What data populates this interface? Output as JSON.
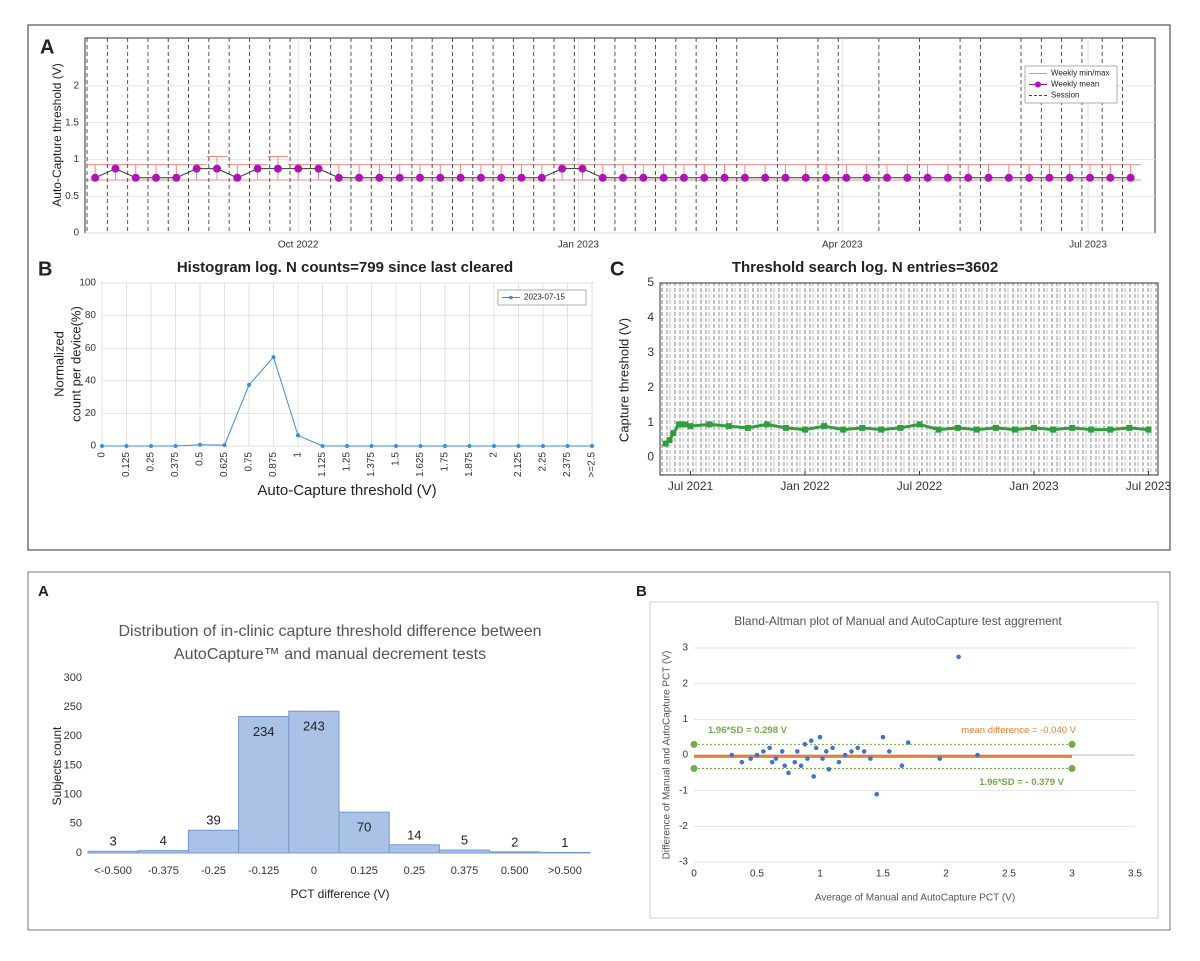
{
  "chart_data": [
    {
      "type": "line",
      "panel_label": "A",
      "ylabel": "Auto-Capture threshold (V)",
      "x": [
        0,
        1,
        2,
        3,
        4,
        5,
        6,
        7,
        8,
        9,
        10,
        11,
        12,
        13,
        14,
        15,
        16,
        17,
        18,
        19,
        20,
        21,
        22,
        23,
        24,
        25,
        26,
        27,
        28,
        29,
        30,
        31,
        32,
        33,
        34,
        35,
        36,
        37,
        38,
        39,
        40,
        41,
        42,
        43,
        44,
        45,
        46,
        47,
        48,
        49,
        50,
        51
      ],
      "series": [
        {
          "name": "Weekly min/max",
          "color": "#f08a8a",
          "low": [
            0.72,
            0.72,
            0.72,
            0.72,
            0.72,
            0.72,
            0.72,
            0.72,
            0.72,
            0.72,
            0.72,
            0.72,
            0.72,
            0.72,
            0.72,
            0.72,
            0.72,
            0.72,
            0.72,
            0.72,
            0.72,
            0.72,
            0.72,
            0.72,
            0.72,
            0.72,
            0.72,
            0.72,
            0.72,
            0.72,
            0.72,
            0.72,
            0.72,
            0.72,
            0.72,
            0.72,
            0.72,
            0.72,
            0.72,
            0.72,
            0.72,
            0.72,
            0.72,
            0.72,
            0.72,
            0.72,
            0.72,
            0.72,
            0.72,
            0.72,
            0.72,
            0.72
          ],
          "high": [
            0.93,
            0.93,
            0.93,
            0.93,
            0.93,
            0.93,
            1.04,
            0.93,
            0.93,
            1.04,
            0.93,
            0.93,
            0.93,
            0.93,
            0.93,
            0.93,
            0.93,
            0.93,
            0.93,
            0.93,
            0.93,
            0.93,
            0.93,
            0.93,
            0.93,
            0.93,
            0.93,
            0.93,
            0.93,
            0.93,
            0.93,
            0.93,
            0.93,
            0.93,
            0.93,
            0.93,
            0.93,
            0.93,
            0.93,
            0.93,
            0.93,
            0.93,
            0.93,
            0.93,
            0.93,
            0.93,
            0.93,
            0.93,
            0.93,
            0.93,
            0.93,
            0.93
          ]
        },
        {
          "name": "Weekly mean",
          "color": "#b012b8",
          "values": [
            0.75,
            0.875,
            0.75,
            0.75,
            0.75,
            0.875,
            0.875,
            0.75,
            0.875,
            0.875,
            0.875,
            0.875,
            0.75,
            0.75,
            0.75,
            0.75,
            0.75,
            0.75,
            0.75,
            0.75,
            0.75,
            0.75,
            0.75,
            0.875,
            0.875,
            0.75,
            0.75,
            0.75,
            0.75,
            0.75,
            0.75,
            0.75,
            0.75,
            0.75,
            0.75,
            0.75,
            0.75,
            0.75,
            0.75,
            0.75,
            0.75,
            0.75,
            0.75,
            0.75,
            0.75,
            0.75,
            0.75,
            0.75,
            0.75,
            0.75,
            0.75,
            0.75
          ]
        },
        {
          "name": "Session",
          "color": "#444",
          "x": [
            -0.4,
            0.6,
            1.6,
            2.6,
            3.6,
            4.6,
            5.6,
            6.6,
            7.6,
            8.6,
            9.6,
            10.6,
            11.6,
            12.6,
            13.6,
            14.6,
            15.6,
            16.6,
            17.6,
            18.6,
            19.6,
            20.6,
            21.6,
            22.6,
            23.6,
            24.6,
            25.6,
            26.6,
            27.6,
            28.6,
            29.6,
            30.6,
            31.6,
            33.6,
            35.6,
            36.6,
            38.6,
            40.6,
            42.6,
            43.6,
            45.6,
            46.6,
            47.6,
            48.6,
            49.6,
            50.6
          ]
        }
      ],
      "xlim": [
        -0.5,
        52.2
      ],
      "ylim": [
        0,
        2.65
      ],
      "xticks": [
        {
          "value": 10,
          "label": "Oct 2022"
        },
        {
          "value": 23.8,
          "label": "Jan 2023"
        },
        {
          "value": 36.8,
          "label": "Apr 2023"
        },
        {
          "value": 48.9,
          "label": "Jul 2023"
        }
      ],
      "yticks": [
        0,
        0.5,
        1,
        1.5,
        2
      ],
      "grid": true,
      "legend": "upper right"
    },
    {
      "type": "line",
      "panel_label": "B",
      "title": "Histogram log. N counts=799  since last cleared",
      "ylabel": [
        "Normalized",
        "count per device(%)"
      ],
      "xlabel": "Auto-Capture threshold (V)",
      "categories": [
        "0",
        "0.125",
        "0.25",
        "0.375",
        "0.5",
        "0.625",
        "0.75",
        "0.875",
        "1",
        "1.125",
        "1.25",
        "1.375",
        "1.5",
        "1.625",
        "1.75",
        "1.875",
        "2",
        "2.125",
        "2.25",
        "2.375",
        ">=2.5"
      ],
      "series": [
        {
          "name": "2023-07-15",
          "color": "#3b8ed8",
          "values": [
            0,
            0,
            0,
            0,
            0.8,
            0.5,
            37.5,
            54.5,
            6.5,
            0,
            0,
            0,
            0,
            0,
            0,
            0,
            0,
            0,
            0,
            0,
            0
          ]
        }
      ],
      "ylim": [
        0,
        100
      ],
      "yticks": [
        0,
        20,
        40,
        60,
        80,
        100
      ],
      "grid": true,
      "legend": "upper right"
    },
    {
      "type": "line",
      "panel_label": "C",
      "title": "Threshold search log. N entries=3602",
      "ylabel": "Capture threshold (V)",
      "x": [
        -1.3,
        -1.1,
        -0.9,
        -0.6,
        -0.3,
        0,
        1,
        2,
        3,
        4,
        5,
        6,
        7,
        8,
        9,
        10,
        11,
        12,
        13,
        14,
        15,
        16,
        17,
        18,
        19,
        20,
        21,
        22,
        23,
        24
      ],
      "values": [
        0.4,
        0.5,
        0.7,
        0.95,
        0.95,
        0.9,
        0.95,
        0.9,
        0.85,
        0.95,
        0.85,
        0.8,
        0.9,
        0.8,
        0.85,
        0.8,
        0.85,
        0.95,
        0.8,
        0.85,
        0.8,
        0.85,
        0.8,
        0.85,
        0.8,
        0.85,
        0.8,
        0.8,
        0.85,
        0.8
      ],
      "color": "#2e9e3e",
      "xlim": [
        -1.6,
        24.5
      ],
      "ylim": [
        -0.5,
        5
      ],
      "xticks": [
        {
          "value": 0,
          "label": "Jul 2021"
        },
        {
          "value": 6,
          "label": "Jan 2022"
        },
        {
          "value": 12,
          "label": "Jul 2022"
        },
        {
          "value": 18,
          "label": "Jan 2023"
        },
        {
          "value": 24,
          "label": "Jul 2023"
        }
      ],
      "yticks": [
        0,
        1,
        2,
        3,
        4,
        5
      ]
    },
    {
      "type": "bar",
      "panel_label": "A",
      "title": [
        "Distribution of in-clinic capture threshold difference between",
        "AutoCapture™ and manual decrement tests"
      ],
      "ylabel": "Subjects count",
      "xlabel": "PCT difference (V)",
      "categories": [
        "<-0.500",
        "-0.375",
        "-0.25",
        "-0.125",
        "0",
        "0.125",
        "0.25",
        "0.375",
        "0.500",
        ">0.500"
      ],
      "values": [
        3,
        4,
        39,
        234,
        243,
        70,
        14,
        5,
        2,
        1
      ],
      "color": "#a9c2e6",
      "edgecolor": "#7598cc",
      "ylim": [
        0,
        300
      ],
      "yticks": [
        0,
        50,
        100,
        150,
        200,
        250,
        300
      ]
    },
    {
      "type": "scatter",
      "panel_label": "B",
      "title": "Bland-Altman plot of Manual and AutoCapture test aggrement",
      "xlabel": "Average of Manual and AutoCapture PCT (V)",
      "ylabel": "Difference of Manual and AutoCapture PCT (V)",
      "x": [
        0.3,
        0.38,
        0.45,
        0.5,
        0.55,
        0.6,
        0.62,
        0.65,
        0.7,
        0.72,
        0.75,
        0.8,
        0.82,
        0.85,
        0.88,
        0.9,
        0.93,
        0.95,
        0.97,
        1.0,
        1.02,
        1.05,
        1.07,
        1.1,
        1.15,
        1.2,
        1.25,
        1.3,
        1.35,
        1.4,
        1.45,
        1.5,
        1.55,
        1.65,
        1.7,
        1.95,
        2.1,
        2.25
      ],
      "values": [
        0,
        -0.2,
        -0.1,
        0,
        0.1,
        0.2,
        -0.2,
        -0.1,
        0.1,
        -0.3,
        -0.5,
        -0.2,
        0.1,
        -0.3,
        0.3,
        -0.1,
        0.4,
        -0.6,
        0.2,
        0.5,
        -0.1,
        0.1,
        -0.4,
        0.2,
        -0.2,
        0,
        0.1,
        0.2,
        0.1,
        -0.1,
        -1.1,
        0.5,
        0.1,
        -0.3,
        0.35,
        -0.1,
        2.75,
        0
      ],
      "color": "#4472c4",
      "mean_difference": {
        "value": -0.04,
        "label": "mean difference = -0.040 V",
        "color": "#ed7d31"
      },
      "limits": [
        {
          "value": 0.298,
          "label": "1.96*SD = 0.298 V"
        },
        {
          "value": -0.379,
          "label": "1.96*SD = - 0.379 V"
        }
      ],
      "limit_color": "#70ad47",
      "line_x": [
        0,
        3
      ],
      "xlim": [
        0,
        3.5
      ],
      "xticks": [
        0,
        0.5,
        1,
        1.5,
        2,
        2.5,
        3,
        3.5
      ],
      "ylim": [
        -3,
        3
      ],
      "yticks": [
        -3,
        -2,
        -1,
        0,
        1,
        2,
        3
      ],
      "grid": "y"
    }
  ]
}
